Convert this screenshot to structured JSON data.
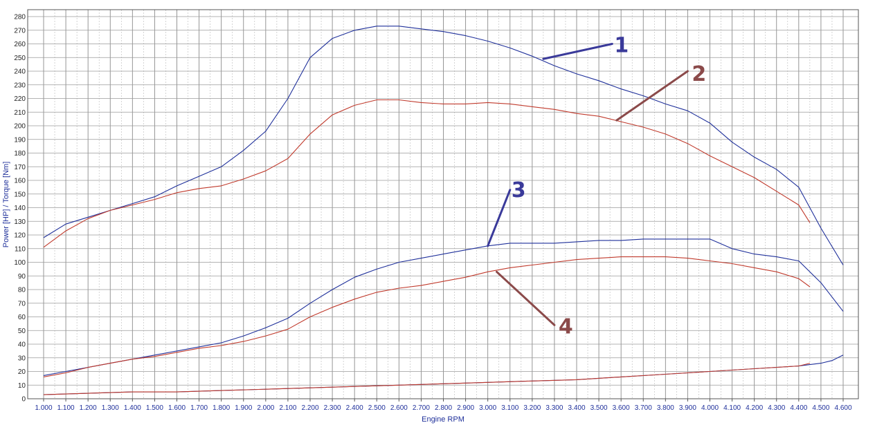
{
  "chart_data": {
    "type": "line",
    "xlabel": "Engine RPM",
    "ylabel": "Power [HP] / Torque [Nm]",
    "xlim": [
      1000,
      4600
    ],
    "ylim": [
      0,
      280
    ],
    "grid": true,
    "x_ticks": [
      "1.000",
      "1.100",
      "1.200",
      "1.300",
      "1.400",
      "1.500",
      "1.600",
      "1.700",
      "1.800",
      "1.900",
      "2.000",
      "2.100",
      "2.200",
      "2.300",
      "2.400",
      "2.500",
      "2.600",
      "2.700",
      "2.800",
      "2.900",
      "3.000",
      "3.100",
      "3.200",
      "3.300",
      "3.400",
      "3.500",
      "3.600",
      "3.700",
      "3.800",
      "3.900",
      "4.000",
      "4.100",
      "4.200",
      "4.300",
      "4.400",
      "4.500",
      "4.600"
    ],
    "y_ticks": [
      "0",
      "10",
      "20",
      "30",
      "40",
      "50",
      "60",
      "70",
      "80",
      "90",
      "100",
      "110",
      "120",
      "130",
      "140",
      "150",
      "160",
      "170",
      "180",
      "190",
      "200",
      "210",
      "220",
      "230",
      "240",
      "250",
      "260",
      "270",
      "280"
    ],
    "series": [
      {
        "name": "1",
        "color": "#1e2f9a",
        "x": [
          1000,
          1100,
          1200,
          1300,
          1400,
          1500,
          1600,
          1700,
          1800,
          1900,
          2000,
          2100,
          2200,
          2300,
          2400,
          2500,
          2600,
          2700,
          2800,
          2900,
          3000,
          3100,
          3200,
          3300,
          3400,
          3500,
          3600,
          3700,
          3800,
          3900,
          4000,
          4100,
          4200,
          4300,
          4400,
          4500,
          4600
        ],
        "y": [
          118,
          128,
          133,
          138,
          143,
          148,
          156,
          163,
          170,
          182,
          196,
          220,
          250,
          264,
          270,
          273,
          273,
          271,
          269,
          266,
          262,
          257,
          251,
          244,
          238,
          233,
          227,
          222,
          216,
          211,
          202,
          188,
          177,
          168,
          155,
          125,
          98
        ]
      },
      {
        "name": "2",
        "color": "#c0392b",
        "x": [
          1000,
          1100,
          1200,
          1300,
          1400,
          1500,
          1600,
          1700,
          1800,
          1900,
          2000,
          2100,
          2200,
          2300,
          2400,
          2500,
          2600,
          2700,
          2800,
          2900,
          3000,
          3100,
          3200,
          3300,
          3400,
          3500,
          3600,
          3700,
          3800,
          3900,
          4000,
          4100,
          4200,
          4300,
          4400,
          4450
        ],
        "y": [
          111,
          123,
          132,
          138,
          142,
          146,
          151,
          154,
          156,
          161,
          167,
          176,
          194,
          208,
          215,
          219,
          219,
          217,
          216,
          216,
          217,
          216,
          214,
          212,
          209,
          207,
          203,
          199,
          194,
          187,
          178,
          170,
          162,
          152,
          142,
          129
        ]
      },
      {
        "name": "3",
        "color": "#1e2f9a",
        "x": [
          1000,
          1100,
          1200,
          1300,
          1400,
          1500,
          1600,
          1700,
          1800,
          1900,
          2000,
          2100,
          2200,
          2300,
          2400,
          2500,
          2600,
          2700,
          2800,
          2900,
          3000,
          3100,
          3200,
          3300,
          3400,
          3500,
          3600,
          3700,
          3800,
          3900,
          4000,
          4100,
          4200,
          4300,
          4400,
          4500,
          4600
        ],
        "y": [
          17,
          20,
          23,
          26,
          29,
          32,
          35,
          38,
          41,
          46,
          52,
          59,
          70,
          80,
          89,
          95,
          100,
          103,
          106,
          109,
          112,
          114,
          114,
          114,
          115,
          116,
          116,
          117,
          117,
          117,
          117,
          110,
          106,
          104,
          101,
          85,
          64
        ]
      },
      {
        "name": "4",
        "color": "#c0392b",
        "x": [
          1000,
          1100,
          1200,
          1300,
          1400,
          1500,
          1600,
          1700,
          1800,
          1900,
          2000,
          2100,
          2200,
          2300,
          2400,
          2500,
          2600,
          2700,
          2800,
          2900,
          3000,
          3100,
          3200,
          3300,
          3400,
          3500,
          3600,
          3700,
          3800,
          3900,
          4000,
          4100,
          4200,
          4300,
          4400,
          4450
        ],
        "y": [
          16,
          19,
          23,
          26,
          29,
          31,
          34,
          37,
          39,
          42,
          46,
          51,
          60,
          67,
          73,
          78,
          81,
          83,
          86,
          89,
          93,
          96,
          98,
          100,
          102,
          103,
          104,
          104,
          104,
          103,
          101,
          99,
          96,
          93,
          88,
          82
        ]
      },
      {
        "name": "",
        "color": "#1e2f9a",
        "x": [
          1000,
          1200,
          1400,
          1600,
          1800,
          2000,
          2200,
          2400,
          2600,
          2800,
          3000,
          3200,
          3400,
          3600,
          3800,
          4000,
          4200,
          4400,
          4500,
          4550,
          4600
        ],
        "y": [
          3,
          4,
          5,
          5,
          6,
          7,
          8,
          9,
          10,
          11,
          12,
          13,
          14,
          16,
          18,
          20,
          22,
          24,
          26,
          28,
          32
        ]
      },
      {
        "name": "",
        "color": "#c0392b",
        "x": [
          1000,
          1200,
          1400,
          1600,
          1800,
          2000,
          2200,
          2400,
          2600,
          2800,
          3000,
          3200,
          3400,
          3600,
          3800,
          4000,
          4200,
          4400,
          4450
        ],
        "y": [
          3,
          4,
          5,
          5,
          6,
          7,
          8,
          9,
          10,
          11,
          12,
          13,
          14,
          16,
          18,
          20,
          22,
          24,
          26
        ]
      }
    ],
    "annotations": [
      {
        "label": "1",
        "color": "#3a3a9a",
        "from": [
          3250,
          249
        ],
        "to": [
          3560,
          260
        ]
      },
      {
        "label": "2",
        "color": "#8b4a4a",
        "from": [
          3580,
          204
        ],
        "to": [
          3900,
          240
        ]
      },
      {
        "label": "3",
        "color": "#3a3a9a",
        "from": [
          3000,
          112
        ],
        "to": [
          3100,
          153
        ]
      },
      {
        "label": "4",
        "color": "#8b4a4a",
        "from": [
          3040,
          93
        ],
        "to": [
          3300,
          54
        ]
      }
    ]
  }
}
